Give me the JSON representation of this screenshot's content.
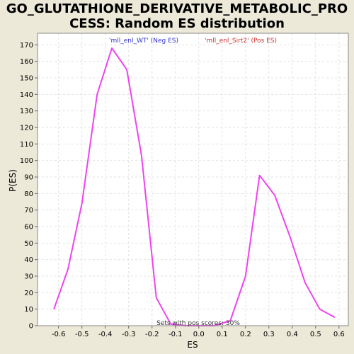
{
  "chart_data": {
    "type": "line",
    "title_lines": [
      "GO_GLUTATHIONE_DERIVATIVE_METABOLIC_PRO",
      "CESS: Random ES distribution"
    ],
    "xlabel": "ES",
    "ylabel": "P(ES)",
    "xlim": [
      -0.69,
      0.64
    ],
    "ylim": [
      0,
      177
    ],
    "x_ticks": [
      -0.6,
      -0.5,
      -0.4,
      -0.3,
      -0.2,
      -0.1,
      0.0,
      0.1,
      0.2,
      0.3,
      0.4,
      0.5,
      0.6
    ],
    "x_tick_labels": [
      "-0.6",
      "-0.5",
      "-0.4",
      "-0.3",
      "-0.2",
      "-0.1",
      "0.0",
      "0.1",
      "0.2",
      "0.3",
      "0.4",
      "0.5",
      "0.6"
    ],
    "y_ticks": [
      0,
      10,
      20,
      30,
      40,
      50,
      60,
      70,
      80,
      90,
      100,
      110,
      120,
      130,
      140,
      150,
      160,
      170
    ],
    "grid": true,
    "legend": [
      {
        "label": "'mll_enl_WT' (Neg ES)",
        "color": "#3333cc"
      },
      {
        "label": "'mll_enl_Sirt2' (Pos ES)",
        "color": "#cc3333"
      }
    ],
    "annotation": "Sets with pos scores: 30%",
    "series": [
      {
        "color": "#ee44ee",
        "x": [
          -0.62,
          -0.56,
          -0.5,
          -0.435,
          -0.372,
          -0.308,
          -0.245,
          -0.182,
          -0.12,
          -0.06,
          0.0,
          0.065,
          0.135,
          0.2,
          0.26,
          0.325,
          0.39,
          0.455,
          0.518,
          0.582
        ],
        "y": [
          10,
          34,
          74,
          140,
          168,
          155,
          103,
          17,
          1,
          0,
          0,
          0,
          3,
          30,
          91,
          79,
          54,
          26,
          10,
          5
        ]
      }
    ]
  }
}
